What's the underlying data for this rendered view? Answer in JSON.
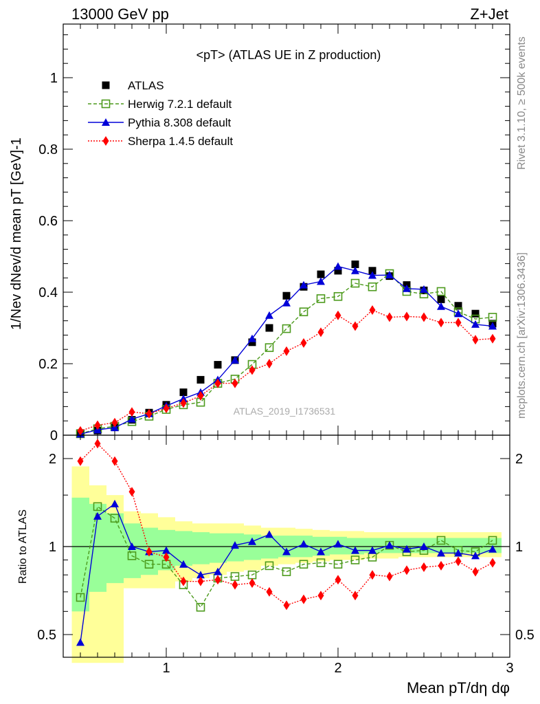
{
  "header": {
    "energy_label": "13000 GeV pp",
    "process_label": "Z+Jet"
  },
  "side_text": {
    "rivet": "Rivet 3.1.10, ≥ 500k events",
    "mcplots": "mcplots.cern.ch [arXiv:1306.3436]"
  },
  "watermark": "ATLAS_2019_I1736531",
  "colors": {
    "atlas": "#000000",
    "herwig": "#4c9a1c",
    "pythia": "#0000d8",
    "sherpa": "#ff0000",
    "band_outer": "#ffff99",
    "band_inner": "#99ff99"
  },
  "chart_data": [
    {
      "type": "scatter",
      "title": "<pT> (ATLAS UE in Z production)",
      "xlabel": "Mean pT/dη dφ",
      "ylabel": "1/Nev dNev/d mean pT [GeV]-1",
      "xlim": [
        0.4,
        3.0
      ],
      "ylim": [
        0,
        1.15
      ],
      "yticks": [
        "0",
        "0.2",
        "0.4",
        "0.6",
        "0.8",
        "1"
      ],
      "xticks": [
        "1",
        "2",
        "3"
      ],
      "legend_position": "top-left",
      "x": [
        0.5,
        0.6,
        0.7,
        0.8,
        0.9,
        1.0,
        1.1,
        1.2,
        1.3,
        1.4,
        1.5,
        1.6,
        1.7,
        1.8,
        1.9,
        2.0,
        2.1,
        2.2,
        2.3,
        2.4,
        2.5,
        2.6,
        2.7,
        2.8,
        2.9
      ],
      "series": [
        {
          "name": "ATLAS",
          "key": "atlas",
          "values": [
            0.006,
            0.013,
            0.022,
            0.043,
            0.063,
            0.085,
            0.12,
            0.155,
            0.197,
            0.21,
            0.26,
            0.3,
            0.39,
            0.415,
            0.45,
            0.46,
            0.478,
            0.46,
            0.445,
            0.42,
            0.405,
            0.38,
            0.362,
            0.34,
            0.312
          ]
        },
        {
          "name": "Herwig 7.2.1 default",
          "key": "herwig",
          "values": [
            0.004,
            0.018,
            0.025,
            0.038,
            0.053,
            0.072,
            0.085,
            0.092,
            0.145,
            0.157,
            0.198,
            0.245,
            0.298,
            0.345,
            0.382,
            0.388,
            0.425,
            0.415,
            0.452,
            0.402,
            0.395,
            0.402,
            0.345,
            0.325,
            0.33
          ]
        },
        {
          "name": "Pythia 8.308 default",
          "key": "pythia",
          "values": [
            0.003,
            0.015,
            0.021,
            0.045,
            0.06,
            0.082,
            0.102,
            0.12,
            0.155,
            0.21,
            0.27,
            0.335,
            0.37,
            0.42,
            0.43,
            0.472,
            0.46,
            0.447,
            0.448,
            0.41,
            0.408,
            0.36,
            0.34,
            0.31,
            0.305
          ]
        },
        {
          "name": "Sherpa 1.4.5 default",
          "key": "sherpa",
          "values": [
            0.012,
            0.028,
            0.035,
            0.065,
            0.06,
            0.075,
            0.09,
            0.11,
            0.145,
            0.145,
            0.182,
            0.2,
            0.235,
            0.258,
            0.288,
            0.335,
            0.305,
            0.35,
            0.33,
            0.332,
            0.33,
            0.315,
            0.315,
            0.267,
            0.27
          ]
        }
      ]
    },
    {
      "type": "line",
      "title": "",
      "xlabel": "Mean pT/dη dφ",
      "ylabel": "Ratio to ATLAS",
      "xlim": [
        0.4,
        3.0
      ],
      "ylim": [
        0.4,
        2.3
      ],
      "log_y": true,
      "yticks": [
        "0.5",
        "1",
        "2"
      ],
      "xticks": [
        "1",
        "2",
        "3"
      ],
      "x": [
        0.5,
        0.6,
        0.7,
        0.8,
        0.9,
        1.0,
        1.1,
        1.2,
        1.3,
        1.4,
        1.5,
        1.6,
        1.7,
        1.8,
        1.9,
        2.0,
        2.1,
        2.2,
        2.3,
        2.4,
        2.5,
        2.6,
        2.7,
        2.8,
        2.9
      ],
      "band_outer": [
        [
          0.4,
          1.88
        ],
        [
          0.4,
          1.62
        ],
        [
          0.4,
          1.5
        ],
        [
          0.72,
          1.32
        ],
        [
          0.72,
          1.3
        ],
        [
          0.72,
          1.26
        ],
        [
          0.76,
          1.22
        ],
        [
          0.78,
          1.2
        ],
        [
          0.8,
          1.2
        ],
        [
          0.82,
          1.2
        ],
        [
          0.83,
          1.18
        ],
        [
          0.86,
          1.16
        ],
        [
          0.87,
          1.16
        ],
        [
          0.88,
          1.15
        ],
        [
          0.89,
          1.14
        ],
        [
          0.9,
          1.13
        ],
        [
          0.9,
          1.13
        ],
        [
          0.91,
          1.12
        ],
        [
          0.91,
          1.12
        ],
        [
          0.92,
          1.12
        ],
        [
          0.92,
          1.12
        ],
        [
          0.92,
          1.12
        ],
        [
          0.92,
          1.12
        ],
        [
          0.92,
          1.12
        ],
        [
          0.92,
          1.12
        ]
      ],
      "band_inner": [
        [
          0.6,
          1.47
        ],
        [
          0.7,
          1.4
        ],
        [
          0.75,
          1.3
        ],
        [
          0.78,
          1.2
        ],
        [
          0.8,
          1.16
        ],
        [
          0.83,
          1.14
        ],
        [
          0.86,
          1.13
        ],
        [
          0.87,
          1.12
        ],
        [
          0.88,
          1.11
        ],
        [
          0.89,
          1.11
        ],
        [
          0.9,
          1.1
        ],
        [
          0.91,
          1.09
        ],
        [
          0.92,
          1.09
        ],
        [
          0.92,
          1.09
        ],
        [
          0.93,
          1.08
        ],
        [
          0.94,
          1.08
        ],
        [
          0.94,
          1.07
        ],
        [
          0.95,
          1.07
        ],
        [
          0.95,
          1.07
        ],
        [
          0.95,
          1.07
        ],
        [
          0.95,
          1.07
        ],
        [
          0.95,
          1.07
        ],
        [
          0.95,
          1.07
        ],
        [
          0.95,
          1.07
        ],
        [
          0.95,
          1.07
        ]
      ],
      "series": [
        {
          "name": "Herwig 7.2.1 default",
          "key": "herwig",
          "values": [
            0.67,
            1.37,
            1.25,
            0.93,
            0.87,
            0.87,
            0.74,
            0.62,
            0.78,
            0.79,
            0.8,
            0.86,
            0.82,
            0.87,
            0.88,
            0.87,
            0.9,
            0.92,
            1.01,
            0.96,
            0.97,
            1.05,
            0.97,
            0.96,
            1.05
          ]
        },
        {
          "name": "Pythia 8.308 default",
          "key": "pythia",
          "values": [
            0.47,
            1.27,
            1.4,
            1.0,
            0.96,
            0.97,
            0.87,
            0.8,
            0.82,
            1.01,
            1.04,
            1.1,
            0.96,
            1.02,
            0.96,
            1.02,
            0.97,
            0.97,
            1.01,
            0.98,
            1.0,
            0.95,
            0.95,
            0.93,
            0.98
          ]
        },
        {
          "name": "Sherpa 1.4.5 default",
          "key": "sherpa",
          "values": [
            1.96,
            2.25,
            1.96,
            1.54,
            0.96,
            0.92,
            0.76,
            0.76,
            0.77,
            0.74,
            0.75,
            0.7,
            0.63,
            0.66,
            0.68,
            0.77,
            0.68,
            0.8,
            0.79,
            0.83,
            0.85,
            0.86,
            0.89,
            0.82,
            0.88
          ]
        }
      ]
    }
  ]
}
